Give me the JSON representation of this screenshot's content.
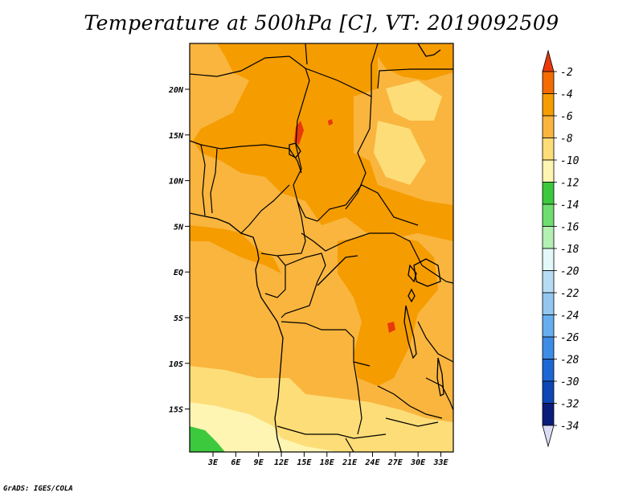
{
  "title": "Temperature at 500hPa [C], VT: 2019092509",
  "credit": "GrADS: IGES/COLA",
  "colors": {
    "c_minus2_up": "#e8380c",
    "c_minus4": "#f46b00",
    "c_minus6": "#f59c00",
    "c_minus8": "#f9b53e",
    "c_minus10": "#fddd77",
    "c_minus12": "#fff5b3",
    "c_minus14": "#3dc93d",
    "c_minus16": "#6fdd6f",
    "c_minus18": "#b3f0b3",
    "c_minus20": "#e3f8f8",
    "c_minus22": "#b6dcf4",
    "c_minus24": "#93c7f0",
    "c_minus26": "#67aeee",
    "c_minus28": "#3d8ce6",
    "c_minus30": "#1c66d6",
    "c_minus32": "#0e47b5",
    "c_minus34": "#0b1d7a",
    "c_below": "#dcdcf6"
  },
  "axes": {
    "lat_labels": [
      "20N",
      "15N",
      "10N",
      "5N",
      "EQ",
      "5S",
      "10S",
      "15S"
    ],
    "lon_labels": [
      "3E",
      "6E",
      "9E",
      "12E",
      "15E",
      "18E",
      "21E",
      "24E",
      "27E",
      "30E",
      "33E"
    ]
  },
  "colorbar": {
    "labels": [
      "-2",
      "-4",
      "-6",
      "-8",
      "-10",
      "-12",
      "-14",
      "-16",
      "-18",
      "-20",
      "-22",
      "-24",
      "-26",
      "-28",
      "-30",
      "-32",
      "-34"
    ]
  }
}
